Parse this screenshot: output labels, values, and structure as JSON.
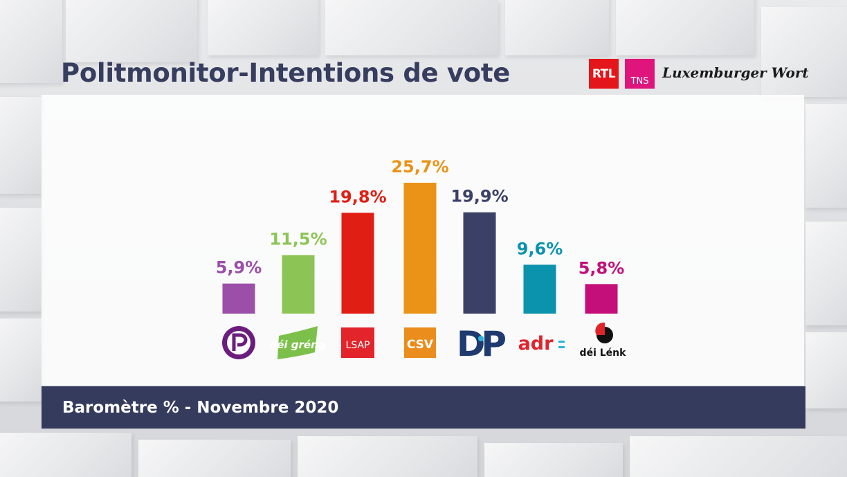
{
  "header": {
    "title": "Politmonitor-Intentions de vote",
    "logos": {
      "rtl": "RTL",
      "tns": "TNS",
      "wort": "Luxemburger Wort"
    }
  },
  "footer": {
    "caption": "Baromètre % - Novembre 2020"
  },
  "chart_data": {
    "type": "bar",
    "categories": [
      "Piratepartei",
      "déi gréng",
      "LSAP",
      "CSV",
      "DP",
      "adr",
      "déi Lénk"
    ],
    "values": [
      5.9,
      11.5,
      19.8,
      25.7,
      19.9,
      9.6,
      5.8
    ],
    "data_labels": [
      "5,9%",
      "11,5%",
      "19,8%",
      "25,7%",
      "19,9%",
      "9,6%",
      "5,8%"
    ],
    "colors": [
      "#9b4fa8",
      "#8cc555",
      "#e11e13",
      "#ea9316",
      "#3a4066",
      "#0b93ad",
      "#c40e79"
    ],
    "logo_text": [
      "",
      "déi gréng",
      "LSAP",
      "CSV",
      "DP",
      "adr",
      "déi Lénk"
    ],
    "title": "Politmonitor-Intentions de vote",
    "xlabel": "",
    "ylabel": "",
    "ylim": [
      0,
      25.7
    ],
    "grid": false,
    "legend": "none"
  }
}
